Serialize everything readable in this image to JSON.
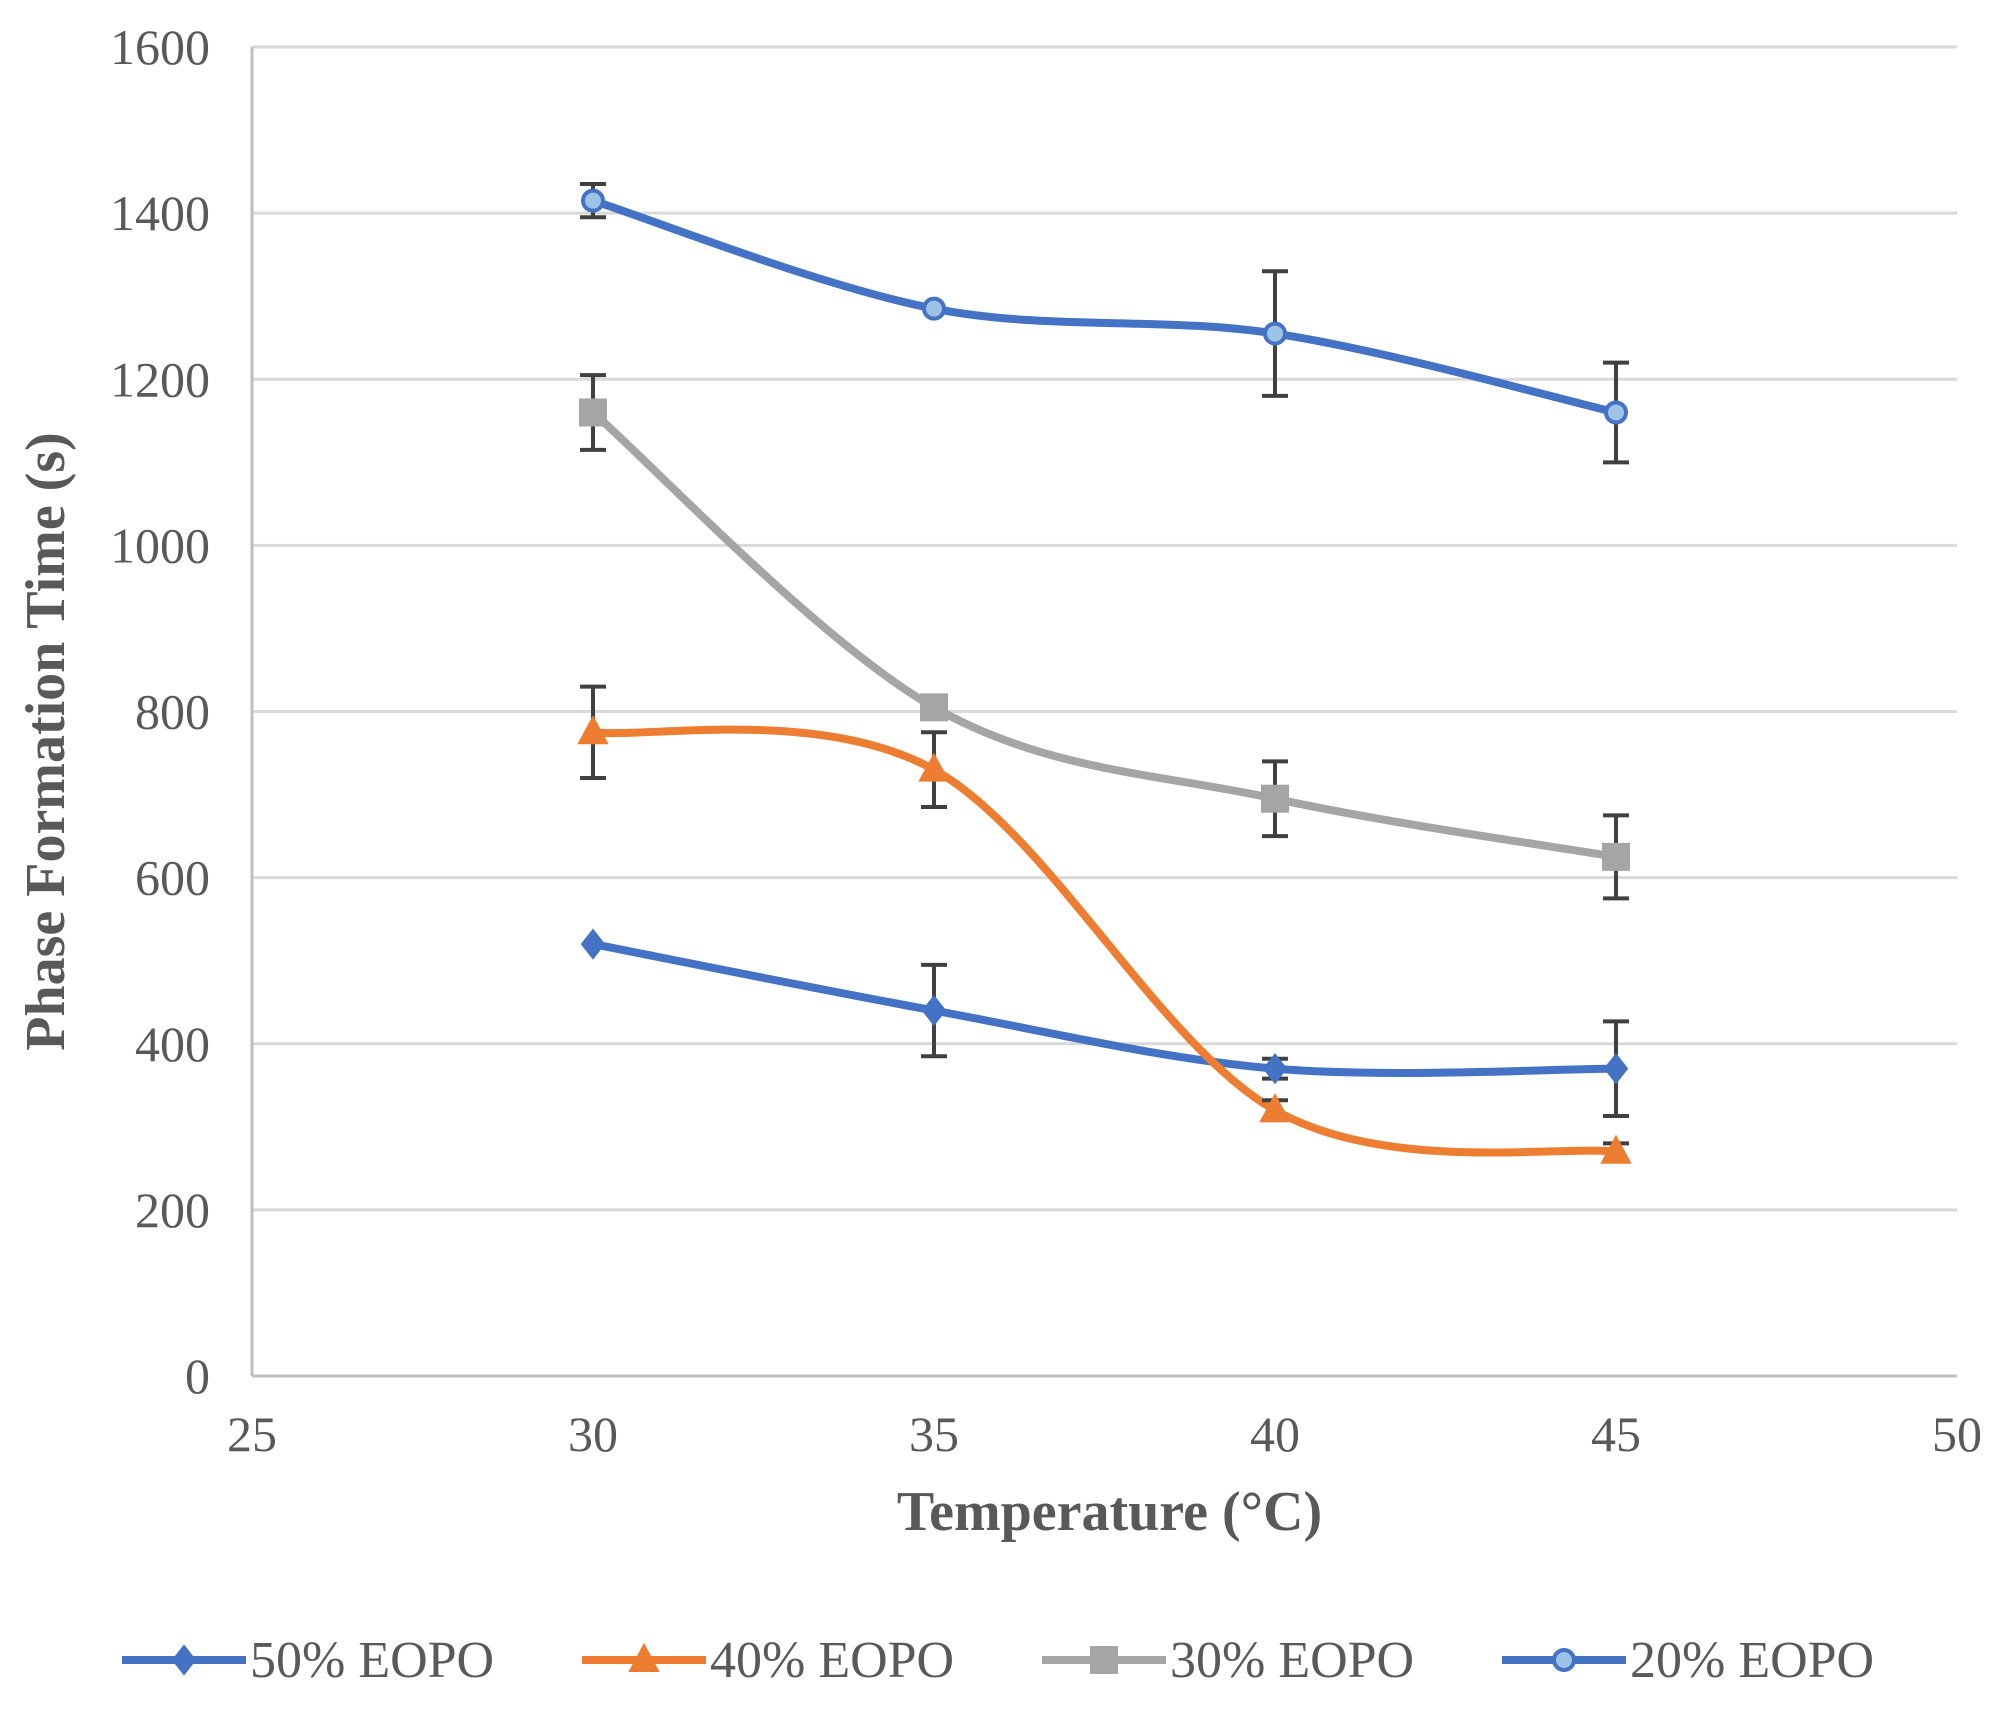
{
  "chart_data": {
    "type": "line",
    "title": "",
    "xlabel": "Temperature (°C)",
    "ylabel": "Phase Formation Time (s)",
    "xlim": [
      25,
      50
    ],
    "ylim": [
      0,
      1600
    ],
    "x_ticks": [
      "25",
      "30",
      "35",
      "40",
      "45",
      "50"
    ],
    "y_ticks": [
      "0",
      "200",
      "400",
      "600",
      "800",
      "1000",
      "1200",
      "1400",
      "1600"
    ],
    "grid": "horizontal",
    "legend_position": "bottom",
    "series": [
      {
        "name": "50% EOPO",
        "color": "#4472C4",
        "marker": "diamond",
        "x": [
          30,
          35,
          40,
          45
        ],
        "values": [
          520,
          440,
          370,
          370
        ],
        "errors": [
          0,
          55,
          12,
          57
        ]
      },
      {
        "name": "40% EOPO",
        "color": "#ED7D31",
        "marker": "triangle",
        "x": [
          30,
          35,
          40,
          45
        ],
        "values": [
          775,
          730,
          320,
          270
        ],
        "errors": [
          55,
          45,
          12,
          10
        ]
      },
      {
        "name": "30% EOPO",
        "color": "#A5A5A5",
        "marker": "square",
        "x": [
          30,
          35,
          40,
          45
        ],
        "values": [
          1160,
          805,
          695,
          625
        ],
        "errors": [
          45,
          0,
          45,
          50
        ]
      },
      {
        "name": "20% EOPO",
        "color": "#4472C4",
        "marker": "circle",
        "x": [
          30,
          35,
          40,
          45
        ],
        "values": [
          1415,
          1285,
          1255,
          1160
        ],
        "errors": [
          20,
          0,
          75,
          60
        ]
      }
    ]
  }
}
